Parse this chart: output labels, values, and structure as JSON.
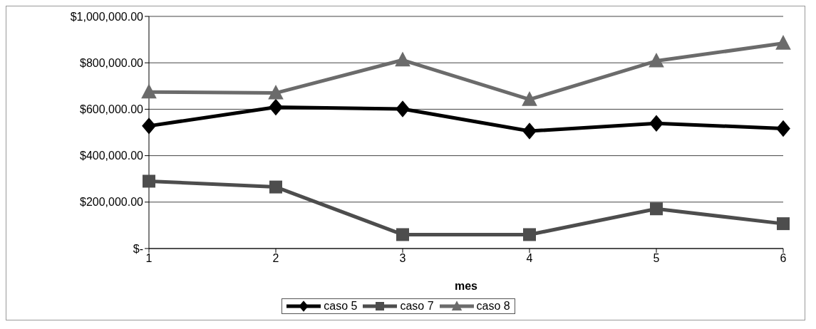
{
  "chart_data": {
    "type": "line",
    "xlabel": "mes",
    "categories": [
      "1",
      "2",
      "3",
      "4",
      "5",
      "6"
    ],
    "series": [
      {
        "name": "caso 5",
        "color": "#000000",
        "marker": "diamond",
        "values": [
          528000,
          609000,
          601000,
          506000,
          539000,
          517000
        ]
      },
      {
        "name": "caso 7",
        "color": "#4d4d4d",
        "marker": "square",
        "values": [
          290000,
          265000,
          60000,
          60000,
          171000,
          107000
        ]
      },
      {
        "name": "caso 8",
        "color": "#6b6b6b",
        "marker": "triangle",
        "values": [
          674000,
          670000,
          812000,
          642000,
          808000,
          884000
        ]
      }
    ],
    "ylim": [
      0,
      1000000
    ],
    "yticks": [
      {
        "value": 0,
        "label": "$-"
      },
      {
        "value": 200000,
        "label": "$200,000.00"
      },
      {
        "value": 400000,
        "label": "$400,000.00"
      },
      {
        "value": 600000,
        "label": "$600,000.00"
      },
      {
        "value": 800000,
        "label": "$800,000.00"
      },
      {
        "value": 1000000,
        "label": "$1,000,000.00"
      }
    ],
    "grid": "y",
    "legend": "bottom",
    "line_style": "solid"
  }
}
